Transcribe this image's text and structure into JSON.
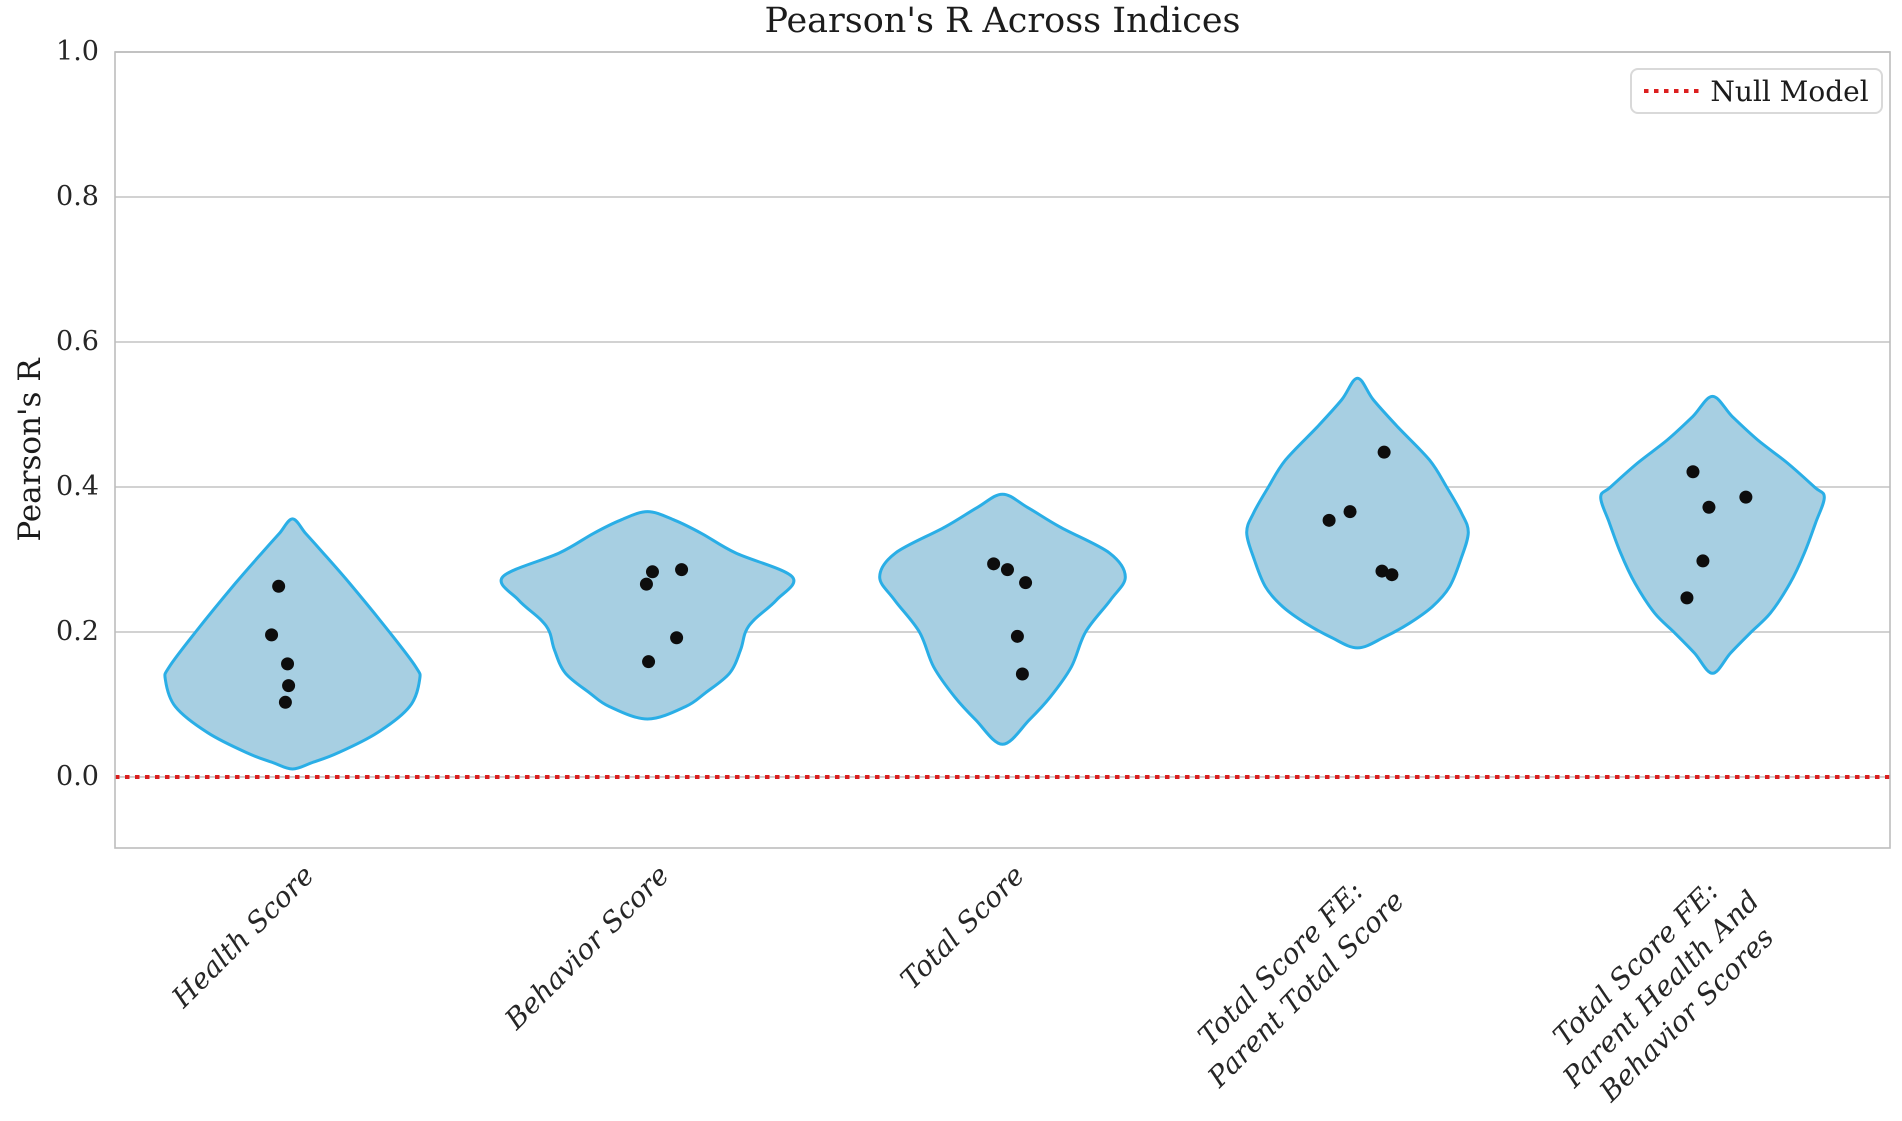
{
  "title": "Pearson's R Across Indices",
  "legend": {
    "label": "Null Model"
  },
  "chart_data": {
    "type": "violin",
    "title": "Pearson's R Across Indices",
    "ylabel": "Pearson's R",
    "ylim": [
      -0.098,
      1.0
    ],
    "yticks": [
      0.0,
      0.2,
      0.4,
      0.6,
      0.8,
      1.0
    ],
    "grid": "horizontal-only",
    "legend": {
      "label": "Null Model",
      "position": "upper-right"
    },
    "null_line": {
      "value": 0.0,
      "style": "dotted",
      "color": "#dc1f1f",
      "label": "Null Model"
    },
    "colors": {
      "violin_fill": "#a7cfe2",
      "violin_edge": "#2aaee6",
      "point": "#0d0d0d",
      "grid": "#cccccc",
      "spine": "#bdbdbd",
      "text": "#1c1c1c"
    },
    "categories": [
      {
        "label": "Health Score",
        "label_lines": [
          "Health Score"
        ],
        "point_values": [
          0.263,
          0.196,
          0.156,
          0.126,
          0.103
        ],
        "point_x_offsets": [
          -0.039,
          -0.059,
          -0.014,
          -0.011,
          -0.02
        ],
        "range": [
          0.011,
          0.356
        ],
        "width_profile": [
          [
            0.011,
            0
          ],
          [
            0.02,
            0.056
          ],
          [
            0.033,
            0.127
          ],
          [
            0.061,
            0.239
          ],
          [
            0.097,
            0.33
          ],
          [
            0.134,
            0.358
          ],
          [
            0.152,
            0.347
          ],
          [
            0.2,
            0.273
          ],
          [
            0.267,
            0.161
          ],
          [
            0.313,
            0.079
          ],
          [
            0.336,
            0.037
          ],
          [
            0.356,
            0
          ]
        ]
      },
      {
        "label": "Behavior Score",
        "label_lines": [
          "Behavior Score"
        ],
        "point_values": [
          0.286,
          0.283,
          0.266,
          0.192,
          0.159
        ],
        "point_x_offsets": [
          0.096,
          0.014,
          -0.003,
          0.082,
          0.003
        ],
        "range": [
          0.08,
          0.366
        ],
        "width_profile": [
          [
            0.08,
            0
          ],
          [
            0.097,
            0.107
          ],
          [
            0.116,
            0.163
          ],
          [
            0.143,
            0.231
          ],
          [
            0.175,
            0.262
          ],
          [
            0.2,
            0.276
          ],
          [
            0.217,
            0.301
          ],
          [
            0.244,
            0.363
          ],
          [
            0.276,
            0.408
          ],
          [
            0.309,
            0.248
          ],
          [
            0.336,
            0.152
          ],
          [
            0.354,
            0.077
          ],
          [
            0.366,
            0
          ]
        ]
      },
      {
        "label": "Total Score",
        "label_lines": [
          "Total Score"
        ],
        "point_values": [
          0.294,
          0.286,
          0.268,
          0.194,
          0.142
        ],
        "point_x_offsets": [
          -0.025,
          0.014,
          0.065,
          0.042,
          0.056
        ],
        "range": [
          0.045,
          0.39
        ],
        "width_profile": [
          [
            0.045,
            0
          ],
          [
            0.079,
            0.076
          ],
          [
            0.11,
            0.134
          ],
          [
            0.152,
            0.194
          ],
          [
            0.2,
            0.234
          ],
          [
            0.244,
            0.304
          ],
          [
            0.276,
            0.346
          ],
          [
            0.309,
            0.301
          ],
          [
            0.345,
            0.161
          ],
          [
            0.372,
            0.07
          ],
          [
            0.39,
            0
          ]
        ]
      },
      {
        "label": "Total Score FE: Parent Total Score",
        "label_lines": [
          "Total Score FE:",
          "Parent Total Score"
        ],
        "point_values": [
          0.448,
          0.366,
          0.354,
          0.284,
          0.279
        ],
        "point_x_offsets": [
          0.075,
          -0.021,
          -0.08,
          0.069,
          0.097
        ],
        "range": [
          0.178,
          0.55
        ],
        "width_profile": [
          [
            0.178,
            0
          ],
          [
            0.193,
            0.076
          ],
          [
            0.212,
            0.146
          ],
          [
            0.235,
            0.211
          ],
          [
            0.262,
            0.259
          ],
          [
            0.299,
            0.29
          ],
          [
            0.337,
            0.312
          ],
          [
            0.364,
            0.293
          ],
          [
            0.4,
            0.251
          ],
          [
            0.437,
            0.203
          ],
          [
            0.483,
            0.113
          ],
          [
            0.52,
            0.045
          ],
          [
            0.55,
            0
          ]
        ]
      },
      {
        "label": "Total Score FE: Parent Health And Behavior Scores",
        "label_lines": [
          "Total Score FE:",
          "Parent Health And",
          "Behavior Scores"
        ],
        "point_values": [
          0.421,
          0.386,
          0.372,
          0.298,
          0.247
        ],
        "point_x_offsets": [
          -0.055,
          0.094,
          -0.01,
          -0.027,
          -0.072
        ],
        "range": [
          0.143,
          0.525
        ],
        "width_profile": [
          [
            0.143,
            0
          ],
          [
            0.171,
            0.051
          ],
          [
            0.199,
            0.107
          ],
          [
            0.226,
            0.163
          ],
          [
            0.267,
            0.218
          ],
          [
            0.309,
            0.259
          ],
          [
            0.35,
            0.29
          ],
          [
            0.386,
            0.315
          ],
          [
            0.4,
            0.287
          ],
          [
            0.433,
            0.211
          ],
          [
            0.465,
            0.127
          ],
          [
            0.497,
            0.056
          ],
          [
            0.525,
            0
          ]
        ]
      }
    ]
  }
}
